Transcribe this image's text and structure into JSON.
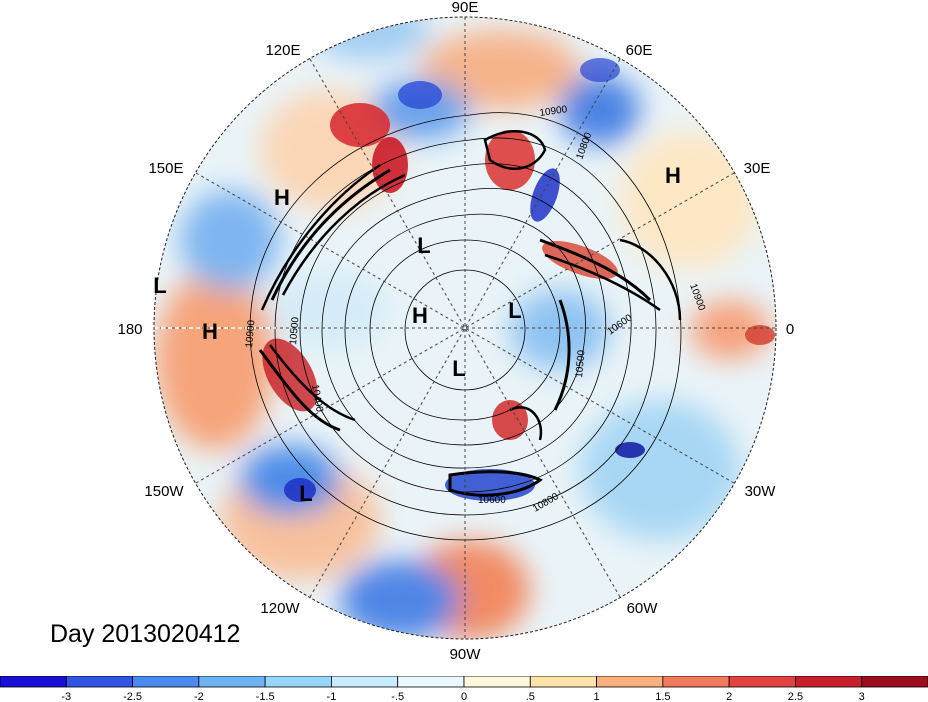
{
  "title": "Day 2013020412",
  "longitude_labels": [
    "90E",
    "60E",
    "30E",
    "0",
    "30W",
    "60W",
    "90W",
    "120W",
    "150W",
    "180",
    "150E",
    "120E"
  ],
  "pressure_centers": [
    "H",
    "H",
    "H",
    "H",
    "L",
    "L",
    "L",
    "L",
    "L"
  ],
  "contour_labels": [
    "10900",
    "10800",
    "10900",
    "10600",
    "10500",
    "10900",
    "10500",
    "10400",
    "10600",
    "10800"
  ],
  "colorbar": {
    "ticks": [
      "-3",
      "-2.5",
      "-2",
      "-1.5",
      "-1",
      "-.5",
      "0",
      ".5",
      "1",
      "1.5",
      "2",
      "2.5",
      "3"
    ],
    "colors": [
      "#1a0fd6",
      "#2f56e6",
      "#4b8bef",
      "#6db2f5",
      "#97d6fa",
      "#c6ecfd",
      "#eaf8fe",
      "#fff8dc",
      "#fde3a7",
      "#f9b07e",
      "#f27a5c",
      "#e2433f",
      "#c81e2a",
      "#9b0d1c"
    ]
  }
}
